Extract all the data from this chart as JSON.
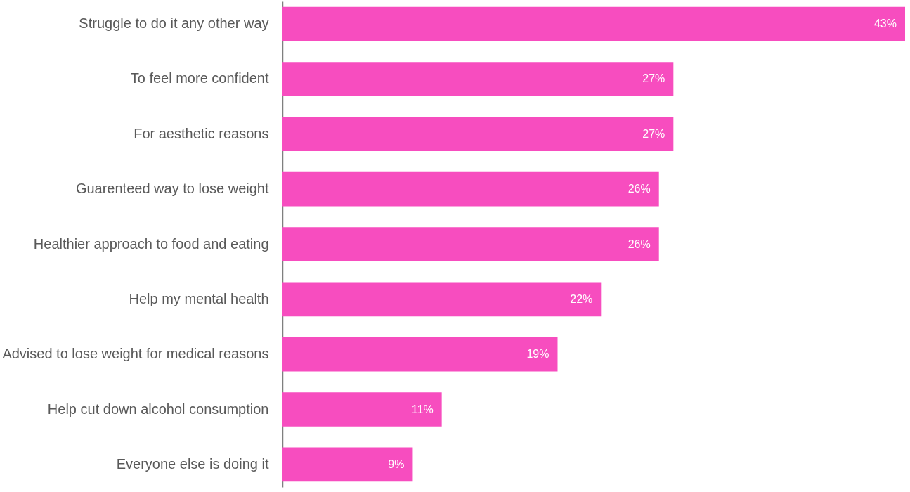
{
  "chart_data": {
    "type": "bar",
    "orientation": "horizontal",
    "categories": [
      "Struggle to do it any other way",
      "To feel more confident",
      "For aesthetic reasons",
      "Guarenteed way to lose weight",
      "Healthier approach to food and eating",
      "Help my mental health",
      "Advised to lose weight for medical reasons",
      "Help cut down alcohol consumption",
      "Everyone else is doing it"
    ],
    "values": [
      43,
      27,
      27,
      26,
      26,
      22,
      19,
      11,
      9
    ],
    "value_labels": [
      "43%",
      "27%",
      "27%",
      "26%",
      "26%",
      "22%",
      "19%",
      "11%",
      "9%"
    ],
    "color": "#f74dbf",
    "grid": false,
    "tick_labels": "y"
  }
}
